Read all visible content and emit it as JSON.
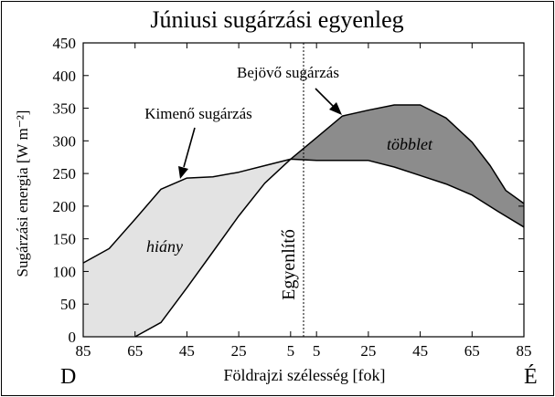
{
  "chart_data": {
    "type": "area",
    "title": "Júniusi sugárzási egyenleg",
    "xlabel": "Földrajzi szélesség [fok]",
    "ylabel": "Sugárzási energia [W m⁻²]",
    "ylim": [
      0,
      450
    ],
    "yticks": [
      0,
      50,
      100,
      150,
      200,
      250,
      300,
      350,
      400,
      450
    ],
    "x_ticks": [
      {
        "lat": -85,
        "label": "85"
      },
      {
        "lat": -65,
        "label": "65"
      },
      {
        "lat": -45,
        "label": "45"
      },
      {
        "lat": -25,
        "label": "25"
      },
      {
        "lat": -5,
        "label": "5"
      },
      {
        "lat": 5,
        "label": "5"
      },
      {
        "lat": 25,
        "label": "25"
      },
      {
        "lat": 45,
        "label": "45"
      },
      {
        "lat": 65,
        "label": "65"
      },
      {
        "lat": 85,
        "label": "85"
      }
    ],
    "xlim": [
      -85,
      85
    ],
    "hemisphere_labels": {
      "south": "D",
      "north": "É"
    },
    "grid": false,
    "series": [
      {
        "name": "Bejövő sugárzás",
        "points": [
          [
            -65,
            0
          ],
          [
            -55,
            22
          ],
          [
            -45,
            75
          ],
          [
            -35,
            130
          ],
          [
            -25,
            185
          ],
          [
            -15,
            235
          ],
          [
            -5,
            272
          ],
          [
            5,
            305
          ],
          [
            15,
            338
          ],
          [
            25,
            347
          ],
          [
            35,
            355
          ],
          [
            45,
            355
          ],
          [
            55,
            335
          ],
          [
            65,
            298
          ],
          [
            72,
            262
          ],
          [
            78,
            224
          ],
          [
            85,
            204
          ]
        ]
      },
      {
        "name": "Kimenő sugárzás",
        "points": [
          [
            -85,
            113
          ],
          [
            -75,
            135
          ],
          [
            -65,
            180
          ],
          [
            -55,
            226
          ],
          [
            -45,
            243
          ],
          [
            -35,
            245
          ],
          [
            -25,
            252
          ],
          [
            -15,
            262
          ],
          [
            -5,
            272
          ],
          [
            5,
            270
          ],
          [
            15,
            270
          ],
          [
            25,
            270
          ],
          [
            35,
            260
          ],
          [
            45,
            247
          ],
          [
            55,
            234
          ],
          [
            65,
            217
          ],
          [
            75,
            192
          ],
          [
            85,
            168
          ]
        ]
      }
    ],
    "regions": [
      {
        "name": "hiány",
        "color": "#e3e3e3"
      },
      {
        "name": "többlet",
        "color": "#8c8c8c"
      }
    ],
    "equator_label": "Egyenlítő"
  }
}
